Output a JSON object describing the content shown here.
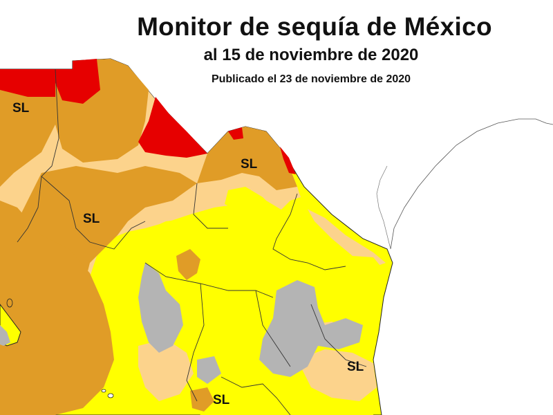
{
  "map": {
    "title": "Monitor de sequía de México",
    "subtitle": "al 15 de noviembre de 2020",
    "published": "Publicado el 23 de noviembre de 2020",
    "labels": [
      "SL",
      "SL",
      "SL",
      "SL",
      "SL"
    ],
    "colors": {
      "water_background": "#ffffff",
      "no_drought_gray": "#b4b4b4",
      "abnormally_dry_yellow": "#ffff00",
      "moderate_drought_tan": "#fcd38c",
      "severe_drought_orange": "#e09c27",
      "extreme_drought_red": "#e60000",
      "boundary_lines": "#222222"
    }
  }
}
